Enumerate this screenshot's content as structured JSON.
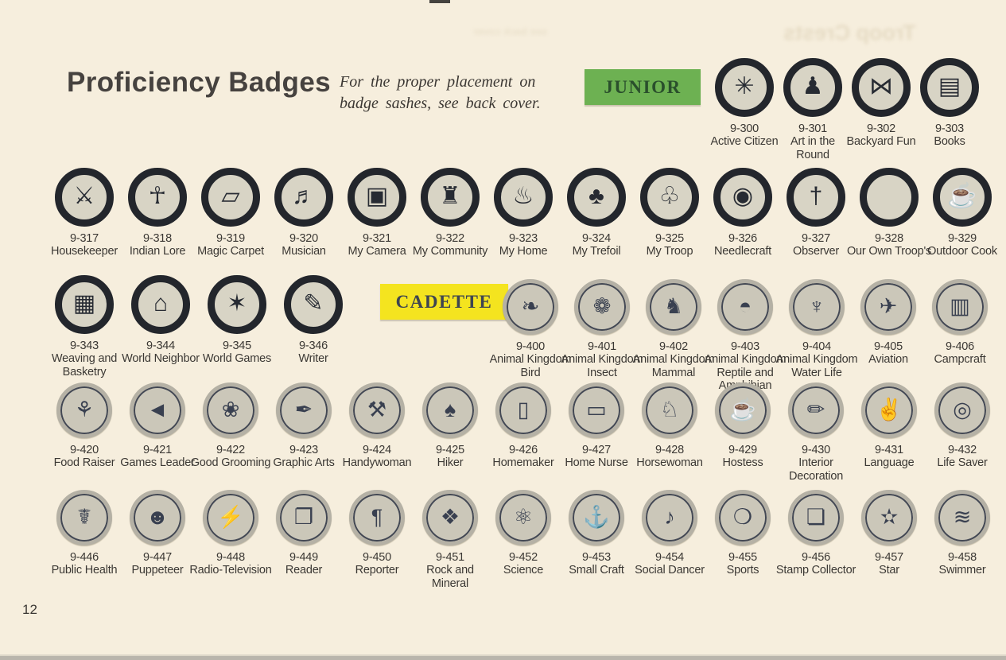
{
  "page": {
    "title": "Proficiency Badges",
    "note_line1": "For the proper placement on",
    "note_line2": "badge sashes, see back cover.",
    "page_number": "12",
    "bleedthrough_text": "Troop Crests",
    "bleedthrough_small": "see back cover"
  },
  "sections": {
    "junior_label": "JUNIOR",
    "cadette_label": "CADETTE",
    "junior_box_color": "#6db152",
    "junior_text_color": "#2a4f2c",
    "cadette_box_color": "#f4e41f",
    "cadette_text_color": "#3e4551",
    "paper_color": "#f6eedd",
    "junior_ring_color": "#23262c",
    "junior_disc_color": "#d8d4c5",
    "cadette_rim_color": "#b5b1a5",
    "cadette_disc_color": "#cbc7b9"
  },
  "rows": {
    "row1_junior": [
      {
        "code": "9-300",
        "name": "Active Citizen",
        "icon": "✳",
        "icon_name": "eight-point-star-icon"
      },
      {
        "code": "9-301",
        "name": "Art in the Round",
        "icon": "♟",
        "icon_name": "statuette-icon"
      },
      {
        "code": "9-302",
        "name": "Backyard Fun",
        "icon": "⋈",
        "icon_name": "camp-stool-icon"
      },
      {
        "code": "9-303",
        "name": "Books",
        "icon": "▤",
        "icon_name": "books-icon"
      }
    ],
    "row2_junior": [
      {
        "code": "9-317",
        "name": "Housekeeper",
        "icon": "⚔",
        "icon_name": "crossed-keys-icon"
      },
      {
        "code": "9-318",
        "name": "Indian Lore",
        "icon": "☥",
        "icon_name": "indian-figure-icon"
      },
      {
        "code": "9-319",
        "name": "Magic Carpet",
        "icon": "▱",
        "icon_name": "flying-carpet-icon"
      },
      {
        "code": "9-320",
        "name": "Musician",
        "icon": "♬",
        "icon_name": "treble-clef-icon"
      },
      {
        "code": "9-321",
        "name": "My Camera",
        "icon": "▣",
        "icon_name": "camera-icon"
      },
      {
        "code": "9-322",
        "name": "My Community",
        "icon": "♜",
        "icon_name": "civic-building-icon"
      },
      {
        "code": "9-323",
        "name": "My Home",
        "icon": "♨",
        "icon_name": "hearth-fire-icon"
      },
      {
        "code": "9-324",
        "name": "My Trefoil",
        "icon": "♣",
        "icon_name": "trefoil-icon"
      },
      {
        "code": "9-325",
        "name": "My Troop",
        "icon": "♧",
        "icon_name": "trefoil-outline-icon"
      },
      {
        "code": "9-326",
        "name": "Needlecraft",
        "icon": "◉",
        "icon_name": "embroidery-hoop-icon"
      },
      {
        "code": "9-327",
        "name": "Observer",
        "icon": "†",
        "icon_name": "branch-cross-icon"
      },
      {
        "code": "9-328",
        "name": "Our Own Troop's",
        "icon": "",
        "icon_name": "blank-disc"
      },
      {
        "code": "9-329",
        "name": "Outdoor Cook",
        "icon": "☕",
        "icon_name": "kettle-icon"
      }
    ],
    "row3_junior": [
      {
        "code": "9-343",
        "name": "Weaving and Basketry",
        "icon": "▦",
        "icon_name": "basket-icon"
      },
      {
        "code": "9-344",
        "name": "World Neighbor",
        "icon": "⌂",
        "icon_name": "house-landscape-icon"
      },
      {
        "code": "9-345",
        "name": "World Games",
        "icon": "✶",
        "icon_name": "dancers-icon"
      },
      {
        "code": "9-346",
        "name": "Writer",
        "icon": "✎",
        "icon_name": "scroll-icon"
      }
    ],
    "row3_cadette": [
      {
        "code": "9-400",
        "name": "Animal Kingdom Bird",
        "icon": "❧",
        "icon_name": "bird-icon"
      },
      {
        "code": "9-401",
        "name": "Animal Kingdom Insect",
        "icon": "❁",
        "icon_name": "insect-plant-icon"
      },
      {
        "code": "9-402",
        "name": "Animal Kingdom Mammal",
        "icon": "♞",
        "icon_name": "squirrel-icon"
      },
      {
        "code": "9-403",
        "name": "Animal Kingdom Reptile and Amphibian",
        "icon": "◓",
        "icon_name": "turtle-icon"
      },
      {
        "code": "9-404",
        "name": "Animal Kingdom Water Life",
        "icon": "♆",
        "icon_name": "shell-icon"
      },
      {
        "code": "9-405",
        "name": "Aviation",
        "icon": "✈",
        "icon_name": "airplane-icon"
      },
      {
        "code": "9-406",
        "name": "Campcraft",
        "icon": "▥",
        "icon_name": "camp-basket-icon"
      }
    ],
    "row4_cadette": [
      {
        "code": "9-420",
        "name": "Food Raiser",
        "icon": "⚘",
        "icon_name": "garden-tools-icon"
      },
      {
        "code": "9-421",
        "name": "Games Leader",
        "icon": "◄",
        "icon_name": "megaphone-icon"
      },
      {
        "code": "9-422",
        "name": "Good Grooming",
        "icon": "❀",
        "icon_name": "slipper-icon"
      },
      {
        "code": "9-423",
        "name": "Graphic Arts",
        "icon": "✒",
        "icon_name": "paint-roller-icon"
      },
      {
        "code": "9-424",
        "name": "Handywoman",
        "icon": "⚒",
        "icon_name": "crossed-tools-icon"
      },
      {
        "code": "9-425",
        "name": "Hiker",
        "icon": "♠",
        "icon_name": "pine-tree-icon"
      },
      {
        "code": "9-426",
        "name": "Homemaker",
        "icon": "▯",
        "icon_name": "doorway-icon"
      },
      {
        "code": "9-427",
        "name": "Home Nurse",
        "icon": "▭",
        "icon_name": "bed-icon"
      },
      {
        "code": "9-428",
        "name": "Horsewoman",
        "icon": "♘",
        "icon_name": "riding-boot-icon"
      },
      {
        "code": "9-429",
        "name": "Hostess",
        "icon": "☕",
        "icon_name": "teapot-icon"
      },
      {
        "code": "9-430",
        "name": "Interior Decoration",
        "icon": "✏",
        "icon_name": "paintbrush-can-icon"
      },
      {
        "code": "9-431",
        "name": "Language",
        "icon": "✌",
        "icon_name": "signal-hand-icon"
      },
      {
        "code": "9-432",
        "name": "Life Saver",
        "icon": "◎",
        "icon_name": "life-ring-icon"
      }
    ],
    "row5_cadette": [
      {
        "code": "9-446",
        "name": "Public Health",
        "icon": "☤",
        "icon_name": "caduceus-icon"
      },
      {
        "code": "9-447",
        "name": "Puppeteer",
        "icon": "☻",
        "icon_name": "puppet-head-icon"
      },
      {
        "code": "9-448",
        "name": "Radio-Television",
        "icon": "⚡",
        "icon_name": "antenna-tower-icon"
      },
      {
        "code": "9-449",
        "name": "Reader",
        "icon": "❐",
        "icon_name": "open-book-icon"
      },
      {
        "code": "9-450",
        "name": "Reporter",
        "icon": "¶",
        "icon_name": "pilcrow-icon"
      },
      {
        "code": "9-451",
        "name": "Rock and Mineral",
        "icon": "❖",
        "icon_name": "rocks-icon"
      },
      {
        "code": "9-452",
        "name": "Science",
        "icon": "⚛",
        "icon_name": "atom-icon"
      },
      {
        "code": "9-453",
        "name": "Small Craft",
        "icon": "⚓",
        "icon_name": "anchor-icon"
      },
      {
        "code": "9-454",
        "name": "Social Dancer",
        "icon": "♪",
        "icon_name": "dancing-legs-icon"
      },
      {
        "code": "9-455",
        "name": "Sports",
        "icon": "❍",
        "icon_name": "sports-equipment-icon"
      },
      {
        "code": "9-456",
        "name": "Stamp Collector",
        "icon": "❏",
        "icon_name": "postage-stamp-icon"
      },
      {
        "code": "9-457",
        "name": "Star",
        "icon": "✫",
        "icon_name": "stars-icon"
      },
      {
        "code": "9-458",
        "name": "Swimmer",
        "icon": "≋",
        "icon_name": "wave-icon"
      }
    ]
  }
}
